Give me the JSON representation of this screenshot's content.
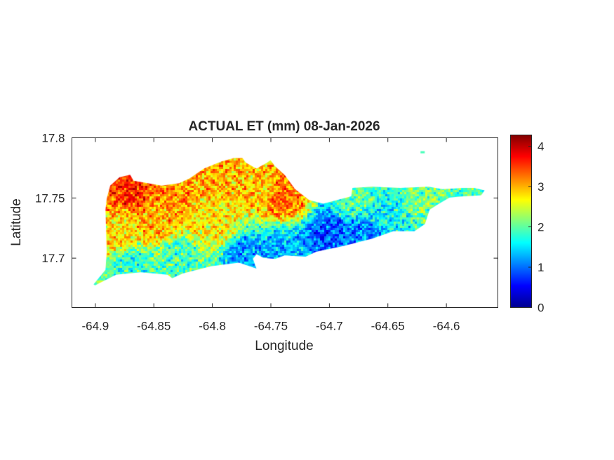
{
  "chart_data": {
    "type": "heatmap",
    "title": "ACTUAL ET (mm) 08-Jan-2026",
    "xlabel": "Longitude",
    "ylabel": "Latitude",
    "xlim": [
      -64.92,
      -64.556
    ],
    "ylim": [
      17.659,
      17.8
    ],
    "xticks": [
      -64.9,
      -64.85,
      -64.8,
      -64.75,
      -64.7,
      -64.65,
      -64.6
    ],
    "xtick_labels": [
      "-64.9",
      "-64.85",
      "-64.8",
      "-64.75",
      "-64.7",
      "-64.65",
      "-64.6"
    ],
    "yticks": [
      17.7,
      17.75,
      17.8
    ],
    "ytick_labels": [
      "17.7",
      "17.75",
      "17.8"
    ],
    "colormap": "jet",
    "clim": [
      0,
      4.28
    ],
    "colorbar_ticks": [
      0,
      1,
      2,
      3,
      4
    ],
    "colorbar_tick_labels": [
      "0",
      "1",
      "2",
      "3",
      "4"
    ],
    "grid": false,
    "region_outline_lonlat": [
      [
        -64.9012,
        17.6779
      ],
      [
        -64.891,
        17.69
      ],
      [
        -64.89,
        17.705
      ],
      [
        -64.891,
        17.74
      ],
      [
        -64.89,
        17.749
      ],
      [
        -64.887,
        17.76
      ],
      [
        -64.879,
        17.767
      ],
      [
        -64.87,
        17.769
      ],
      [
        -64.867,
        17.764
      ],
      [
        -64.843,
        17.76
      ],
      [
        -64.828,
        17.762
      ],
      [
        -64.819,
        17.766
      ],
      [
        -64.807,
        17.774
      ],
      [
        -64.792,
        17.78
      ],
      [
        -64.781,
        17.783
      ],
      [
        -64.774,
        17.783
      ],
      [
        -64.771,
        17.779
      ],
      [
        -64.762,
        17.774
      ],
      [
        -64.753,
        17.779
      ],
      [
        -64.75,
        17.781
      ],
      [
        -64.746,
        17.776
      ],
      [
        -64.738,
        17.769
      ],
      [
        -64.729,
        17.757
      ],
      [
        -64.717,
        17.748
      ],
      [
        -64.705,
        17.745
      ],
      [
        -64.693,
        17.748
      ],
      [
        -64.681,
        17.751
      ],
      [
        -64.68,
        17.758
      ],
      [
        -64.663,
        17.759
      ],
      [
        -64.639,
        17.758
      ],
      [
        -64.615,
        17.759
      ],
      [
        -64.603,
        17.757
      ],
      [
        -64.585,
        17.758
      ],
      [
        -64.576,
        17.758
      ],
      [
        -64.567,
        17.756
      ],
      [
        -64.57,
        17.752
      ],
      [
        -64.585,
        17.751
      ],
      [
        -64.597,
        17.75
      ],
      [
        -64.606,
        17.745
      ],
      [
        -64.614,
        17.74
      ],
      [
        -64.618,
        17.728
      ],
      [
        -64.627,
        17.722
      ],
      [
        -64.645,
        17.722
      ],
      [
        -64.663,
        17.716
      ],
      [
        -64.687,
        17.71
      ],
      [
        -64.711,
        17.705
      ],
      [
        -64.72,
        17.701
      ],
      [
        -64.738,
        17.702
      ],
      [
        -64.746,
        17.699
      ],
      [
        -64.756,
        17.7
      ],
      [
        -64.762,
        17.703
      ],
      [
        -64.765,
        17.699
      ],
      [
        -64.762,
        17.691
      ],
      [
        -64.777,
        17.696
      ],
      [
        -64.801,
        17.693
      ],
      [
        -64.825,
        17.687
      ],
      [
        -64.834,
        17.683
      ],
      [
        -64.838,
        17.686
      ],
      [
        -64.861,
        17.688
      ],
      [
        -64.882,
        17.686
      ],
      [
        -64.9,
        17.677
      ]
    ],
    "islet_lonlat": [
      -64.62,
      17.788
    ],
    "value_samples": [
      {
        "lon": -64.87,
        "lat": 17.76,
        "value": 3.6
      },
      {
        "lon": -64.84,
        "lat": 17.755,
        "value": 3.2
      },
      {
        "lon": -64.8,
        "lat": 17.77,
        "value": 3.0
      },
      {
        "lon": -64.76,
        "lat": 17.76,
        "value": 2.9
      },
      {
        "lon": -64.74,
        "lat": 17.75,
        "value": 3.3
      },
      {
        "lon": -64.88,
        "lat": 17.72,
        "value": 2.8
      },
      {
        "lon": -64.85,
        "lat": 17.73,
        "value": 3.0
      },
      {
        "lon": -64.8,
        "lat": 17.73,
        "value": 2.7
      },
      {
        "lon": -64.87,
        "lat": 17.695,
        "value": 1.8
      },
      {
        "lon": -64.83,
        "lat": 17.7,
        "value": 1.9
      },
      {
        "lon": -64.77,
        "lat": 17.7,
        "value": 1.2
      },
      {
        "lon": -64.74,
        "lat": 17.71,
        "value": 1.3
      },
      {
        "lon": -64.7,
        "lat": 17.72,
        "value": 0.9
      },
      {
        "lon": -64.67,
        "lat": 17.72,
        "value": 1.1
      },
      {
        "lon": -64.68,
        "lat": 17.75,
        "value": 2.0
      },
      {
        "lon": -64.62,
        "lat": 17.75,
        "value": 2.1
      },
      {
        "lon": -64.58,
        "lat": 17.755,
        "value": 1.9
      },
      {
        "lon": -64.65,
        "lat": 17.735,
        "value": 1.6
      }
    ]
  }
}
